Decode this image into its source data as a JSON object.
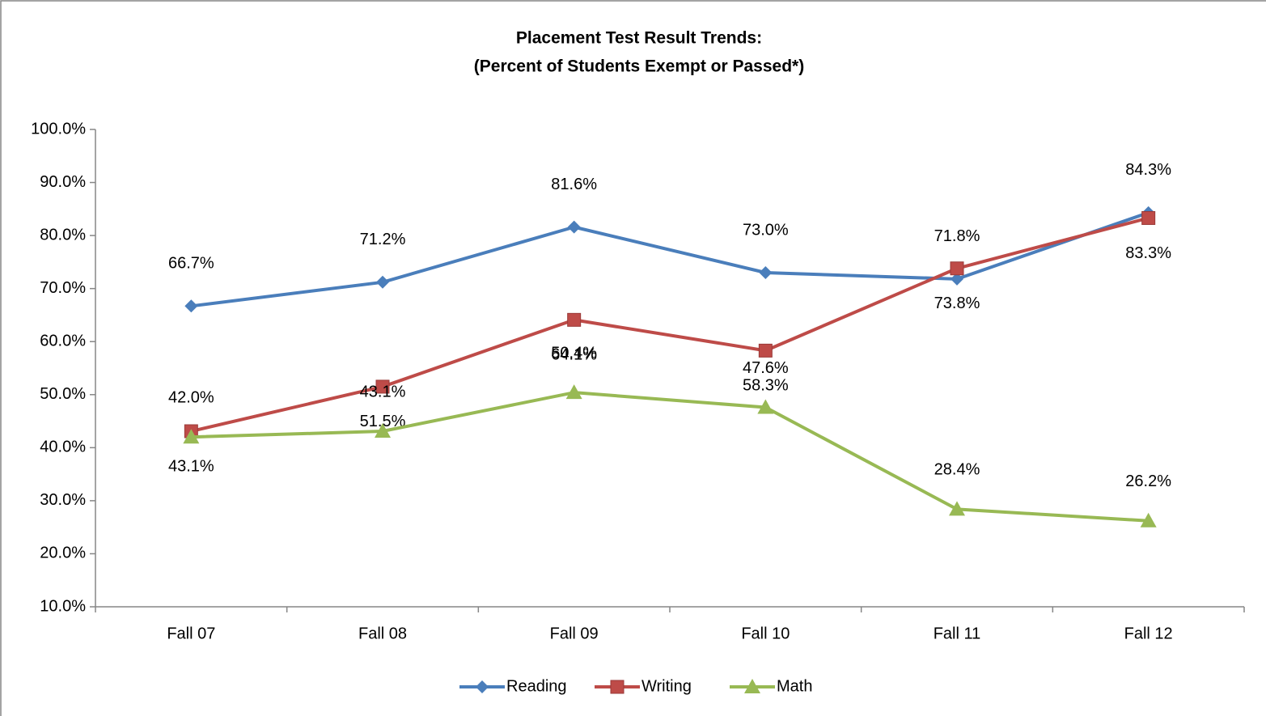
{
  "chart_data": {
    "type": "line",
    "title": "Placement Test Result Trends:",
    "subtitle": "(Percent of Students Exempt or Passed*)",
    "categories": [
      "Fall 07",
      "Fall 08",
      "Fall 09",
      "Fall 10",
      "Fall 11",
      "Fall 12"
    ],
    "series": [
      {
        "name": "Reading",
        "color": "#4a7ebb",
        "marker": "diamond",
        "values": [
          66.7,
          71.2,
          81.6,
          73.0,
          71.8,
          84.3
        ],
        "value_labels": [
          "66.7%",
          "71.2%",
          "81.6%",
          "73.0%",
          "71.8%",
          "84.3%"
        ]
      },
      {
        "name": "Writing",
        "color": "#be4b48",
        "marker": "square",
        "values": [
          43.1,
          51.5,
          64.1,
          58.3,
          73.8,
          83.3
        ],
        "value_labels": [
          "43.1%",
          "51.5%",
          "64.1%",
          "58.3%",
          "73.8%",
          "83.3%"
        ]
      },
      {
        "name": "Math",
        "color": "#98b954",
        "marker": "triangle",
        "values": [
          42.0,
          43.1,
          50.4,
          47.6,
          28.4,
          26.2
        ],
        "value_labels": [
          "42.0%",
          "43.1%",
          "50.4%",
          "47.6%",
          "28.4%",
          "26.2%"
        ]
      }
    ],
    "ylim": [
      10,
      100
    ],
    "yticks": [
      {
        "value": 10,
        "label": "10.0%"
      },
      {
        "value": 20,
        "label": "20.0%"
      },
      {
        "value": 30,
        "label": "30.0%"
      },
      {
        "value": 40,
        "label": "40.0%"
      },
      {
        "value": 50,
        "label": "50.0%"
      },
      {
        "value": 60,
        "label": "60.0%"
      },
      {
        "value": 70,
        "label": "70.0%"
      },
      {
        "value": 80,
        "label": "80.0%"
      },
      {
        "value": 90,
        "label": "90.0%"
      },
      {
        "value": 100,
        "label": "100.0%"
      }
    ],
    "legend": "bottom"
  }
}
